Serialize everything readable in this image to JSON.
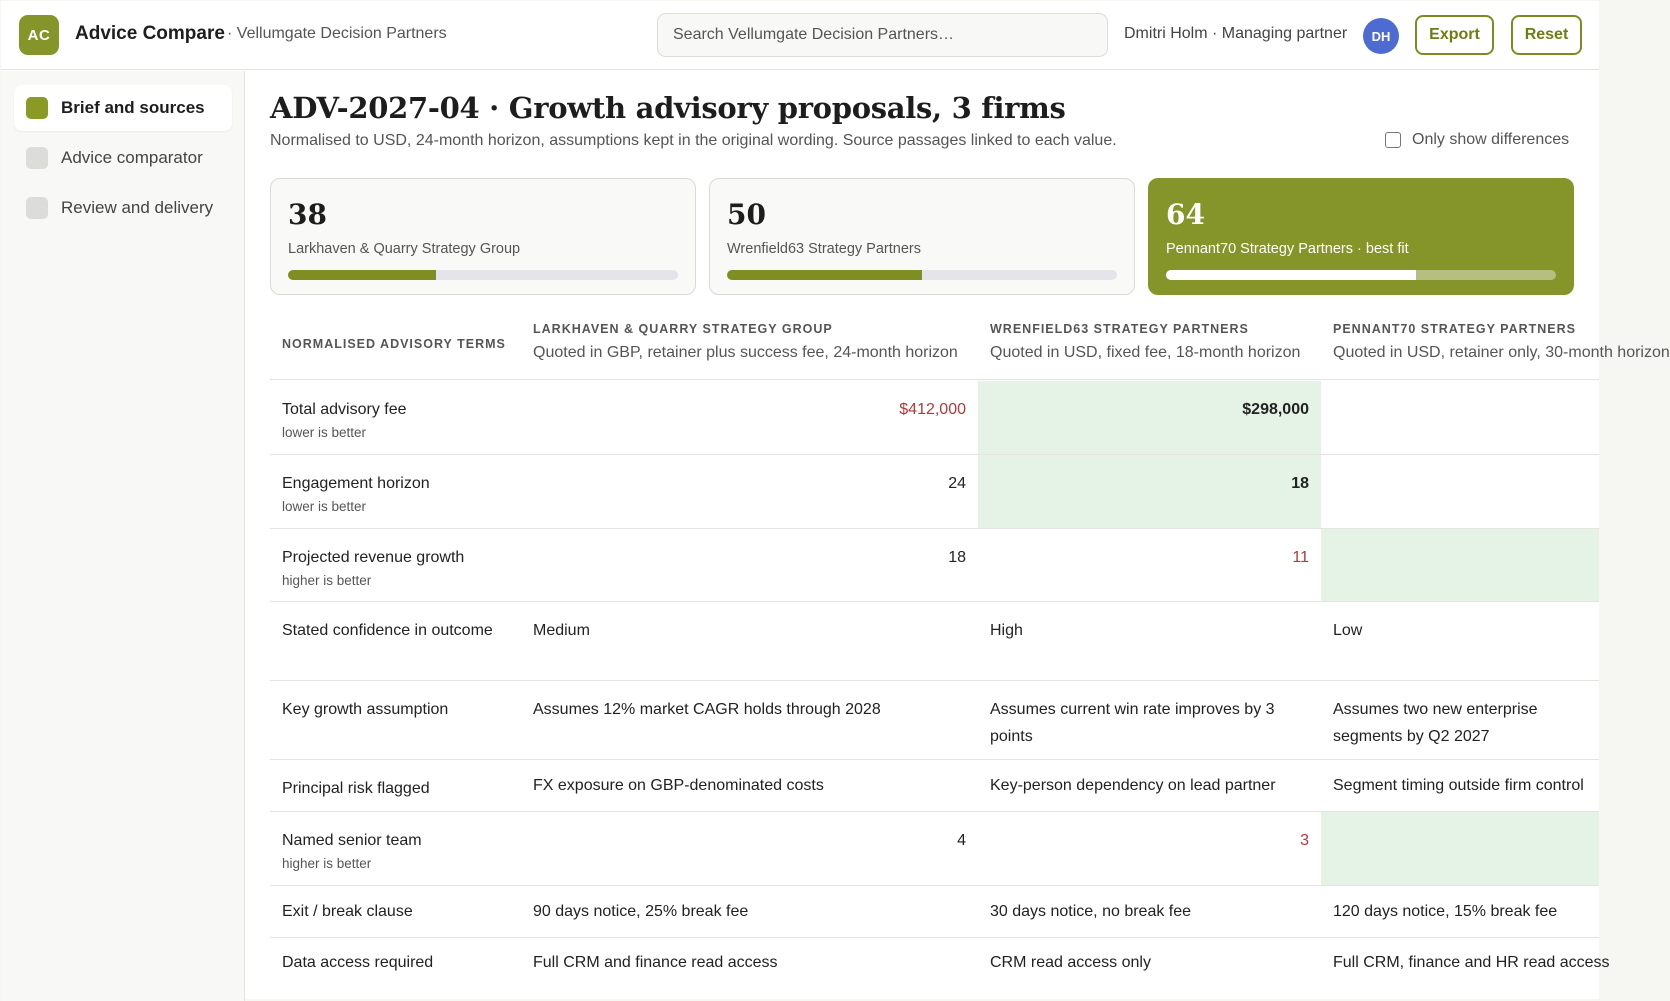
{
  "app": {
    "logo_initials": "AC",
    "name": "Advice Compare",
    "org": "· Vellumgate Decision Partners"
  },
  "search": {
    "placeholder": "Search Vellumgate Decision Partners…"
  },
  "user": {
    "label": "Dmitri Holm · Managing partner",
    "initials": "DH"
  },
  "toolbar": {
    "export_label": "Export",
    "reset_label": "Reset"
  },
  "sidebar": {
    "items": [
      {
        "label": "Brief and sources",
        "active": true
      },
      {
        "label": "Advice comparator",
        "active": false
      },
      {
        "label": "Review and delivery",
        "active": false
      }
    ]
  },
  "page": {
    "title": "ADV-2027-04 · Growth advisory proposals, 3 firms",
    "subtitle": "Normalised to USD, 24-month horizon, assumptions kept in the original wording. Source passages linked to each value.",
    "diff_toggle_label": "Only show differences"
  },
  "cards": [
    {
      "score": "38",
      "name": "Larkhaven & Quarry Strategy Group",
      "fill_percent": 38
    },
    {
      "score": "50",
      "name": "Wrenfield63 Strategy Partners",
      "fill_percent": 50
    },
    {
      "score": "64",
      "name": "Pennant70 Strategy Partners · best fit",
      "fill_percent": 64,
      "best": true
    }
  ],
  "table": {
    "terms_header": "NORMALISED ADVISORY TERMS",
    "firms": [
      {
        "name": "Larkhaven & Quarry Strategy Group",
        "sub": "Quoted in GBP, retainer plus success fee, 24-month horizon"
      },
      {
        "name": "Wrenfield63 Strategy Partners",
        "sub": "Quoted in USD, fixed fee, 18-month horizon"
      },
      {
        "name": "Pennant70 Strategy Partners",
        "sub": "Quoted in USD, retainer only, 30-month horizon"
      }
    ],
    "rows": [
      {
        "term": "Total advisory fee",
        "hint": "lower is better",
        "values": [
          "$412,000",
          "$298,000",
          ""
        ]
      },
      {
        "term": "Engagement horizon",
        "hint": "lower is better",
        "values": [
          "24",
          "18",
          ""
        ]
      },
      {
        "term": "Projected revenue growth",
        "hint": "higher is better",
        "values": [
          "18",
          "11",
          ""
        ]
      },
      {
        "term": "Stated confidence in outcome",
        "hint": "",
        "values": [
          "Medium",
          "High",
          "Low"
        ]
      },
      {
        "term": "Key growth assumption",
        "hint": "",
        "values": [
          "Assumes 12% market CAGR holds through 2028",
          "Assumes current win rate improves by 3 points",
          "Assumes two new enterprise segments by Q2 2027"
        ]
      },
      {
        "term": "Principal risk flagged",
        "hint": "",
        "values": [
          "FX exposure on GBP-denominated costs",
          "Key-person dependency on lead partner",
          "Segment timing outside firm control"
        ]
      },
      {
        "term": "Named senior team",
        "hint": "higher is better",
        "values": [
          "4",
          "3",
          ""
        ]
      },
      {
        "term": "Exit / break clause",
        "hint": "",
        "values": [
          "90 days notice, 25% break fee",
          "30 days notice, no break fee",
          "120 days notice, 15% break fee"
        ]
      },
      {
        "term": "Data access required",
        "hint": "",
        "values": [
          "Full CRM and finance read access",
          "CRM read access only",
          "Full CRM, finance and HR read access"
        ]
      }
    ]
  },
  "colors": {
    "accent": "#86952a",
    "best_cell": "#e5f2e6",
    "worst_text": "#b03a3a",
    "avatar": "#4d6bd0"
  }
}
